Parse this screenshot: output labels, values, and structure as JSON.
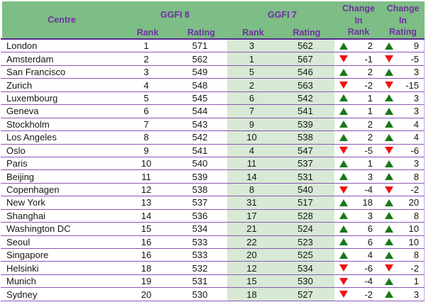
{
  "colors": {
    "header_green": "#7dbd86",
    "light_green": "#d8e9d5",
    "purple_text": "#7030a0",
    "row_border": "#8a58b4",
    "up_green": "#187818",
    "down_red": "#ee1111"
  },
  "table": {
    "headers": {
      "centre": "Centre",
      "ggfi8": "GGFI 8",
      "ggfi7": "GGFI 7",
      "rank": "Rank",
      "rating": "Rating",
      "change": "Change",
      "in": "In"
    },
    "rows": [
      {
        "centre": "London",
        "g8_rank": "1",
        "g8_rating": "571",
        "g7_rank": "3",
        "g7_rating": "562",
        "chg_rank_dir": "up",
        "chg_rank": "2",
        "chg_rating_dir": "up",
        "chg_rating": "9"
      },
      {
        "centre": "Amsterdam",
        "g8_rank": "2",
        "g8_rating": "562",
        "g7_rank": "1",
        "g7_rating": "567",
        "chg_rank_dir": "down",
        "chg_rank": "-1",
        "chg_rating_dir": "down",
        "chg_rating": "-5"
      },
      {
        "centre": "San Francisco",
        "g8_rank": "3",
        "g8_rating": "549",
        "g7_rank": "5",
        "g7_rating": "546",
        "chg_rank_dir": "up",
        "chg_rank": "2",
        "chg_rating_dir": "up",
        "chg_rating": "3"
      },
      {
        "centre": "Zurich",
        "g8_rank": "4",
        "g8_rating": "548",
        "g7_rank": "2",
        "g7_rating": "563",
        "chg_rank_dir": "down",
        "chg_rank": "-2",
        "chg_rating_dir": "down",
        "chg_rating": "-15"
      },
      {
        "centre": "Luxembourg",
        "g8_rank": "5",
        "g8_rating": "545",
        "g7_rank": "6",
        "g7_rating": "542",
        "chg_rank_dir": "up",
        "chg_rank": "1",
        "chg_rating_dir": "up",
        "chg_rating": "3"
      },
      {
        "centre": "Geneva",
        "g8_rank": "6",
        "g8_rating": "544",
        "g7_rank": "7",
        "g7_rating": "541",
        "chg_rank_dir": "up",
        "chg_rank": "1",
        "chg_rating_dir": "up",
        "chg_rating": "3"
      },
      {
        "centre": "Stockholm",
        "g8_rank": "7",
        "g8_rating": "543",
        "g7_rank": "9",
        "g7_rating": "539",
        "chg_rank_dir": "up",
        "chg_rank": "2",
        "chg_rating_dir": "up",
        "chg_rating": "4"
      },
      {
        "centre": "Los Angeles",
        "g8_rank": "8",
        "g8_rating": "542",
        "g7_rank": "10",
        "g7_rating": "538",
        "chg_rank_dir": "up",
        "chg_rank": "2",
        "chg_rating_dir": "up",
        "chg_rating": "4"
      },
      {
        "centre": "Oslo",
        "g8_rank": "9",
        "g8_rating": "541",
        "g7_rank": "4",
        "g7_rating": "547",
        "chg_rank_dir": "down",
        "chg_rank": "-5",
        "chg_rating_dir": "down",
        "chg_rating": "-6"
      },
      {
        "centre": "Paris",
        "g8_rank": "10",
        "g8_rating": "540",
        "g7_rank": "11",
        "g7_rating": "537",
        "chg_rank_dir": "up",
        "chg_rank": "1",
        "chg_rating_dir": "up",
        "chg_rating": "3"
      },
      {
        "centre": "Beijing",
        "g8_rank": "11",
        "g8_rating": "539",
        "g7_rank": "14",
        "g7_rating": "531",
        "chg_rank_dir": "up",
        "chg_rank": "3",
        "chg_rating_dir": "up",
        "chg_rating": "8"
      },
      {
        "centre": "Copenhagen",
        "g8_rank": "12",
        "g8_rating": "538",
        "g7_rank": "8",
        "g7_rating": "540",
        "chg_rank_dir": "down",
        "chg_rank": "-4",
        "chg_rating_dir": "down",
        "chg_rating": "-2"
      },
      {
        "centre": "New York",
        "g8_rank": "13",
        "g8_rating": "537",
        "g7_rank": "31",
        "g7_rating": "517",
        "chg_rank_dir": "up",
        "chg_rank": "18",
        "chg_rating_dir": "up",
        "chg_rating": "20"
      },
      {
        "centre": "Shanghai",
        "g8_rank": "14",
        "g8_rating": "536",
        "g7_rank": "17",
        "g7_rating": "528",
        "chg_rank_dir": "up",
        "chg_rank": "3",
        "chg_rating_dir": "up",
        "chg_rating": "8"
      },
      {
        "centre": "Washington DC",
        "g8_rank": "15",
        "g8_rating": "534",
        "g7_rank": "21",
        "g7_rating": "524",
        "chg_rank_dir": "up",
        "chg_rank": "6",
        "chg_rating_dir": "up",
        "chg_rating": "10"
      },
      {
        "centre": "Seoul",
        "g8_rank": "16",
        "g8_rating": "533",
        "g7_rank": "22",
        "g7_rating": "523",
        "chg_rank_dir": "up",
        "chg_rank": "6",
        "chg_rating_dir": "up",
        "chg_rating": "10"
      },
      {
        "centre": "Singapore",
        "g8_rank": "16",
        "g8_rating": "533",
        "g7_rank": "20",
        "g7_rating": "525",
        "chg_rank_dir": "up",
        "chg_rank": "4",
        "chg_rating_dir": "up",
        "chg_rating": "8"
      },
      {
        "centre": "Helsinki",
        "g8_rank": "18",
        "g8_rating": "532",
        "g7_rank": "12",
        "g7_rating": "534",
        "chg_rank_dir": "down",
        "chg_rank": "-6",
        "chg_rating_dir": "down",
        "chg_rating": "-2"
      },
      {
        "centre": "Munich",
        "g8_rank": "19",
        "g8_rating": "531",
        "g7_rank": "15",
        "g7_rating": "530",
        "chg_rank_dir": "down",
        "chg_rank": "-4",
        "chg_rating_dir": "up",
        "chg_rating": "1"
      },
      {
        "centre": "Sydney",
        "g8_rank": "20",
        "g8_rating": "530",
        "g7_rank": "18",
        "g7_rating": "527",
        "chg_rank_dir": "down",
        "chg_rank": "-2",
        "chg_rating_dir": "up",
        "chg_rating": "3"
      }
    ]
  }
}
